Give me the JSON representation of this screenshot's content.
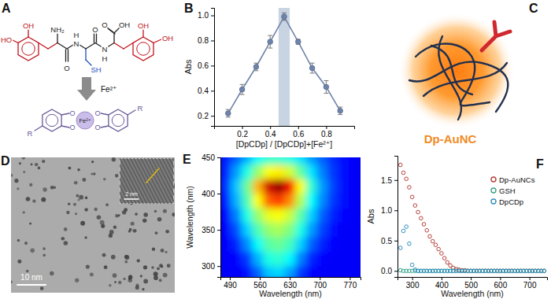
{
  "chart_data": [
    {
      "type": "line",
      "title": "B",
      "x_label": "[DpCDp] / [DpCDp]+[Fe²⁺]",
      "y_label": "Abs",
      "x": [
        0.1,
        0.2,
        0.3,
        0.4,
        0.5,
        0.6,
        0.7,
        0.8,
        0.9
      ],
      "values": [
        0.22,
        0.41,
        0.59,
        0.79,
        0.99,
        0.79,
        0.58,
        0.43,
        0.24
      ],
      "errors": [
        0.03,
        0.04,
        0.03,
        0.05,
        0.03,
        0.02,
        0.04,
        0.05,
        0.03
      ],
      "highlight_x": [
        0.46,
        0.54
      ],
      "color": "#7084ab",
      "marker": "circle",
      "xlim": [
        0,
        1
      ],
      "ylim": [
        0.12,
        1.06
      ],
      "xticks": [
        0.2,
        0.4,
        0.6,
        0.8
      ],
      "yticks": [
        0.2,
        0.4,
        0.6,
        0.8,
        {
          "value": 1,
          "label": "1.0"
        }
      ]
    },
    {
      "type": "heatmap",
      "title": "E",
      "x_label": "Wavelength (nm)",
      "y_label": "Wavelength (nm)",
      "x": [
        480,
        505,
        530,
        555,
        580,
        605,
        630,
        655,
        680,
        705,
        730,
        755,
        780
      ],
      "y": [
        450,
        430,
        410,
        390,
        370,
        350,
        330,
        310,
        290
      ],
      "z": [
        [
          0.15,
          0.22,
          0.3,
          0.38,
          0.42,
          0.42,
          0.4,
          0.35,
          0.28,
          0.22,
          0.17,
          0.14,
          0.12
        ],
        [
          0.16,
          0.28,
          0.4,
          0.52,
          0.62,
          0.64,
          0.58,
          0.47,
          0.35,
          0.25,
          0.18,
          0.14,
          0.12
        ],
        [
          0.17,
          0.32,
          0.48,
          0.7,
          0.92,
          0.98,
          0.88,
          0.62,
          0.42,
          0.28,
          0.19,
          0.14,
          0.12
        ],
        [
          0.15,
          0.3,
          0.45,
          0.62,
          0.78,
          0.82,
          0.74,
          0.55,
          0.38,
          0.26,
          0.18,
          0.14,
          0.12
        ],
        [
          0.13,
          0.25,
          0.4,
          0.52,
          0.6,
          0.62,
          0.57,
          0.46,
          0.33,
          0.22,
          0.16,
          0.13,
          0.12
        ],
        [
          0.12,
          0.2,
          0.33,
          0.45,
          0.52,
          0.54,
          0.5,
          0.4,
          0.28,
          0.19,
          0.14,
          0.12,
          0.12
        ],
        [
          0.12,
          0.16,
          0.26,
          0.38,
          0.46,
          0.48,
          0.44,
          0.33,
          0.22,
          0.16,
          0.13,
          0.12,
          0.12
        ],
        [
          0.12,
          0.13,
          0.18,
          0.3,
          0.4,
          0.42,
          0.37,
          0.25,
          0.16,
          0.13,
          0.12,
          0.12,
          0.12
        ],
        [
          0.12,
          0.12,
          0.14,
          0.22,
          0.32,
          0.34,
          0.28,
          0.18,
          0.13,
          0.12,
          0.12,
          0.12,
          0.12
        ]
      ],
      "zlim": [
        0,
        1
      ],
      "xlim": [
        468,
        795
      ],
      "ylim": [
        285,
        450
      ],
      "xticks": [
        490,
        560,
        630,
        700,
        770
      ],
      "yticks": [
        300,
        350,
        400,
        450
      ]
    },
    {
      "type": "scatter",
      "title": "F",
      "x_label": "Wavelength (nm)",
      "y_label": "Abs",
      "x": [
        260,
        270,
        280,
        290,
        300,
        310,
        320,
        330,
        340,
        350,
        360,
        370,
        380,
        390,
        400,
        410,
        420,
        430,
        440,
        450,
        460,
        470,
        480,
        490,
        500,
        510,
        520,
        530,
        540,
        550,
        560,
        570,
        580,
        590,
        600,
        610,
        620,
        630,
        640,
        650,
        660,
        670,
        680,
        690,
        700,
        710,
        720,
        730,
        740,
        750
      ],
      "series": [
        {
          "name": "Dp-AuNCs",
          "color": "#b5413a",
          "values": [
            1.75,
            1.62,
            1.52,
            1.38,
            1.22,
            1.08,
            0.97,
            0.87,
            0.77,
            0.67,
            0.57,
            0.49,
            0.43,
            0.36,
            0.29,
            0.21,
            0.14,
            0.09,
            0.05,
            0.03,
            0.02,
            0.01,
            0.01,
            0,
            0,
            0,
            0,
            0,
            0,
            0,
            0,
            0,
            0,
            0,
            0,
            0,
            0,
            0,
            0,
            0,
            0,
            0,
            0,
            0,
            0,
            0,
            0,
            0,
            0,
            0
          ]
        },
        {
          "name": "GSH",
          "color": "#3aa58a",
          "values": [
            0.01,
            0,
            0,
            0,
            0,
            0,
            0,
            0,
            0,
            0,
            0,
            0,
            0,
            0,
            0,
            0,
            0,
            0,
            0,
            0,
            0,
            0,
            0,
            0,
            0,
            0,
            0,
            0,
            0,
            0,
            0,
            0,
            0,
            0,
            0,
            0,
            0,
            0,
            0,
            0,
            0,
            0,
            0,
            0,
            0,
            0,
            0,
            0,
            0,
            0
          ]
        },
        {
          "name": "DpCDp",
          "color": "#2f8fc0",
          "values": [
            0.38,
            0.66,
            0.73,
            0.45,
            0.1,
            0.02,
            0,
            0,
            0,
            0,
            0,
            0,
            0,
            0,
            0,
            0,
            0,
            0,
            0,
            0,
            0,
            0,
            0,
            0,
            0,
            0,
            0,
            0,
            0,
            0,
            0,
            0,
            0,
            0,
            0,
            0,
            0,
            0,
            0,
            0,
            0,
            0,
            0,
            0,
            0,
            0,
            0,
            0,
            0,
            0
          ]
        }
      ],
      "marker": "circle",
      "legend": "upper right",
      "xlim": [
        250,
        760
      ],
      "ylim": [
        -0.1,
        1.9
      ],
      "xticks": [
        300,
        400,
        500,
        600,
        700
      ],
      "yticks": [
        {
          "value": 0,
          "label": "0.0"
        },
        0.5,
        {
          "value": 1,
          "label": "1.0"
        },
        1.5
      ]
    }
  ],
  "panel_a": {
    "label": "A",
    "peptide_atoms": [
      "OH",
      "HO",
      "NH₂",
      "O",
      "N",
      "H",
      "SH",
      "O",
      "N",
      "H",
      "O",
      "OH",
      "OH",
      "OH"
    ],
    "reagent": "Fe²⁺",
    "complex_metal": "Fe²⁺",
    "complex_atoms": [
      "O",
      "O",
      "O",
      "O"
    ],
    "substituents": [
      "R",
      "R"
    ]
  },
  "panel_c": {
    "label": "C",
    "name": "Dp-AuNC"
  },
  "panel_d": {
    "label": "D",
    "scale_bar": "10 nm",
    "inset_scale_bar": "2 nm"
  }
}
